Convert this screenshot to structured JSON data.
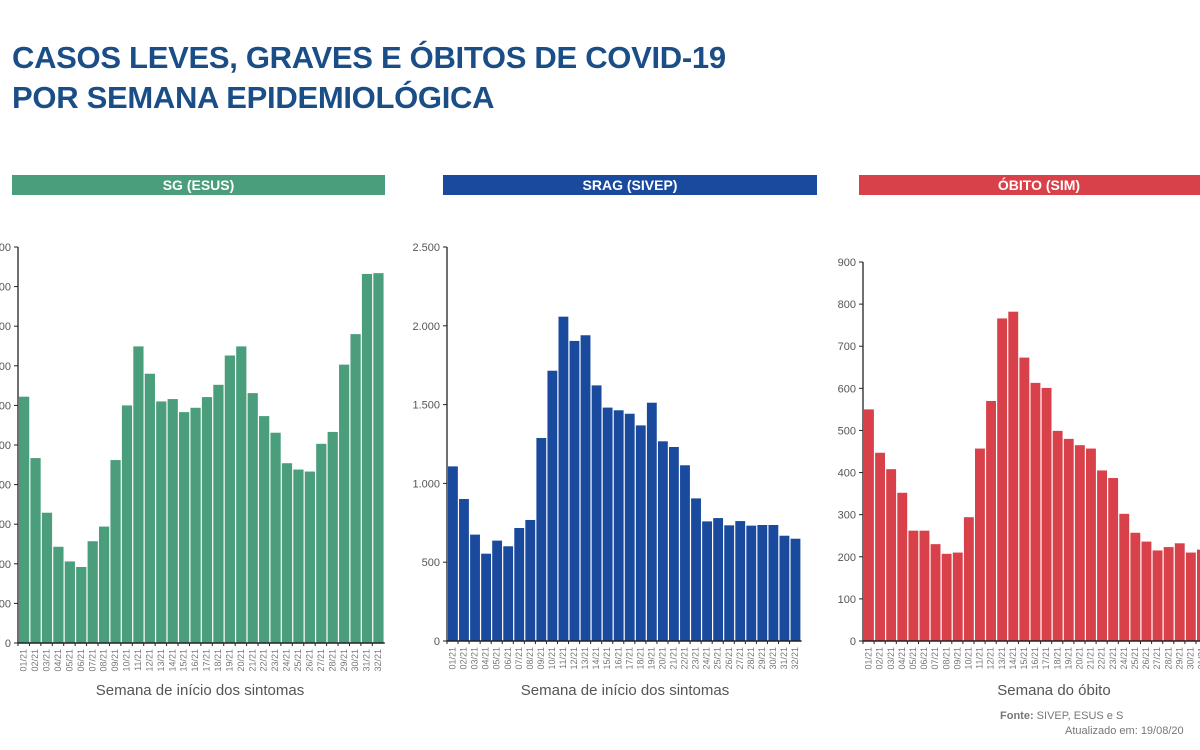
{
  "title_lines": [
    "CASOS LEVES, GRAVES E ÓBITOS DE COVID-19",
    "POR SEMANA EPIDEMIOLÓGICA"
  ],
  "footer": {
    "source_label": "Fonte:",
    "source_text": "SIVEP, ESUS e S",
    "updated": "Atualizado em: 19/08/20"
  },
  "chart_data": [
    {
      "type": "bar",
      "title": "SG (ESUS)",
      "color": "#4a9e7c",
      "xlabel": "Semana de início dos sintomas",
      "ylabel": "",
      "ylim": [
        0,
        10
      ],
      "yticks": [
        0,
        1,
        2,
        3,
        4,
        5,
        6,
        7,
        8,
        9,
        10
      ],
      "ytick_labels": [
        "0",
        "00",
        "00",
        "00",
        "00",
        "00",
        "00",
        "00",
        "00",
        "00",
        "00"
      ],
      "categories": [
        "01/21",
        "02/21",
        "03/21",
        "04/21",
        "05/21",
        "06/21",
        "07/21",
        "08/21",
        "09/21",
        "10/21",
        "11/21",
        "12/21",
        "13/21",
        "14/21",
        "15/21",
        "16/21",
        "17/21",
        "18/21",
        "19/21",
        "20/21",
        "21/21",
        "22/21",
        "23/21",
        "24/21",
        "25/21",
        "26/21",
        "27/21",
        "28/21",
        "29/21",
        "30/21",
        "31/21",
        "32/21"
      ],
      "values": [
        6.22,
        4.67,
        3.29,
        2.43,
        2.06,
        1.92,
        2.57,
        2.94,
        4.62,
        6.0,
        7.49,
        6.8,
        6.1,
        6.16,
        5.83,
        5.94,
        6.21,
        6.52,
        7.26,
        7.49,
        6.31,
        5.73,
        5.31,
        4.54,
        4.38,
        4.33,
        5.03,
        5.33,
        7.03,
        7.8,
        9.32,
        9.34
      ],
      "grid": false
    },
    {
      "type": "bar",
      "title": "SRAG (SIVEP)",
      "color": "#1a4a9e",
      "xlabel": "Semana de início dos sintomas",
      "ylabel": "",
      "ylim": [
        0,
        2500
      ],
      "yticks": [
        0,
        500,
        1000,
        1500,
        2000,
        2500
      ],
      "ytick_labels": [
        "0",
        "500",
        "1.000",
        "1.500",
        "2.000",
        "2.500"
      ],
      "categories": [
        "01/21",
        "02/21",
        "03/21",
        "04/21",
        "05/21",
        "06/21",
        "07/21",
        "08/21",
        "09/21",
        "10/21",
        "11/21",
        "12/21",
        "13/21",
        "14/21",
        "15/21",
        "16/21",
        "17/21",
        "18/21",
        "19/21",
        "20/21",
        "21/21",
        "22/21",
        "23/21",
        "24/21",
        "25/21",
        "26/21",
        "27/21",
        "28/21",
        "29/21",
        "30/21",
        "31/21",
        "32/21"
      ],
      "values": [
        1108,
        901,
        675,
        554,
        637,
        601,
        717,
        768,
        1288,
        1715,
        2058,
        1904,
        1940,
        1622,
        1481,
        1464,
        1442,
        1368,
        1512,
        1267,
        1231,
        1115,
        905,
        759,
        780,
        734,
        761,
        732,
        736,
        736,
        668,
        649
      ],
      "grid": false
    },
    {
      "type": "bar",
      "title": "ÓBITO (SIM)",
      "color": "#d9414a",
      "xlabel": "Semana do óbito",
      "ylabel": "",
      "ylim": [
        0,
        900
      ],
      "yticks": [
        0,
        100,
        200,
        300,
        400,
        500,
        600,
        700,
        800,
        900
      ],
      "ytick_labels": [
        "0",
        "100",
        "200",
        "300",
        "400",
        "500",
        "600",
        "700",
        "800",
        "900"
      ],
      "categories": [
        "01/21",
        "02/21",
        "03/21",
        "04/21",
        "05/21",
        "06/21",
        "07/21",
        "08/21",
        "09/21",
        "10/21",
        "11/21",
        "12/21",
        "13/21",
        "14/21",
        "15/21",
        "16/21",
        "17/21",
        "18/21",
        "19/21",
        "20/21",
        "21/21",
        "22/21",
        "23/21",
        "24/21",
        "25/21",
        "26/21",
        "27/21",
        "28/21",
        "29/21",
        "30/21",
        "31/21"
      ],
      "values": [
        550,
        447,
        408,
        352,
        262,
        262,
        230,
        207,
        210,
        294,
        457,
        570,
        766,
        782,
        673,
        613,
        601,
        499,
        480,
        465,
        457,
        405,
        387,
        302,
        257,
        236,
        215,
        223,
        232,
        210,
        217
      ],
      "grid": false
    }
  ]
}
